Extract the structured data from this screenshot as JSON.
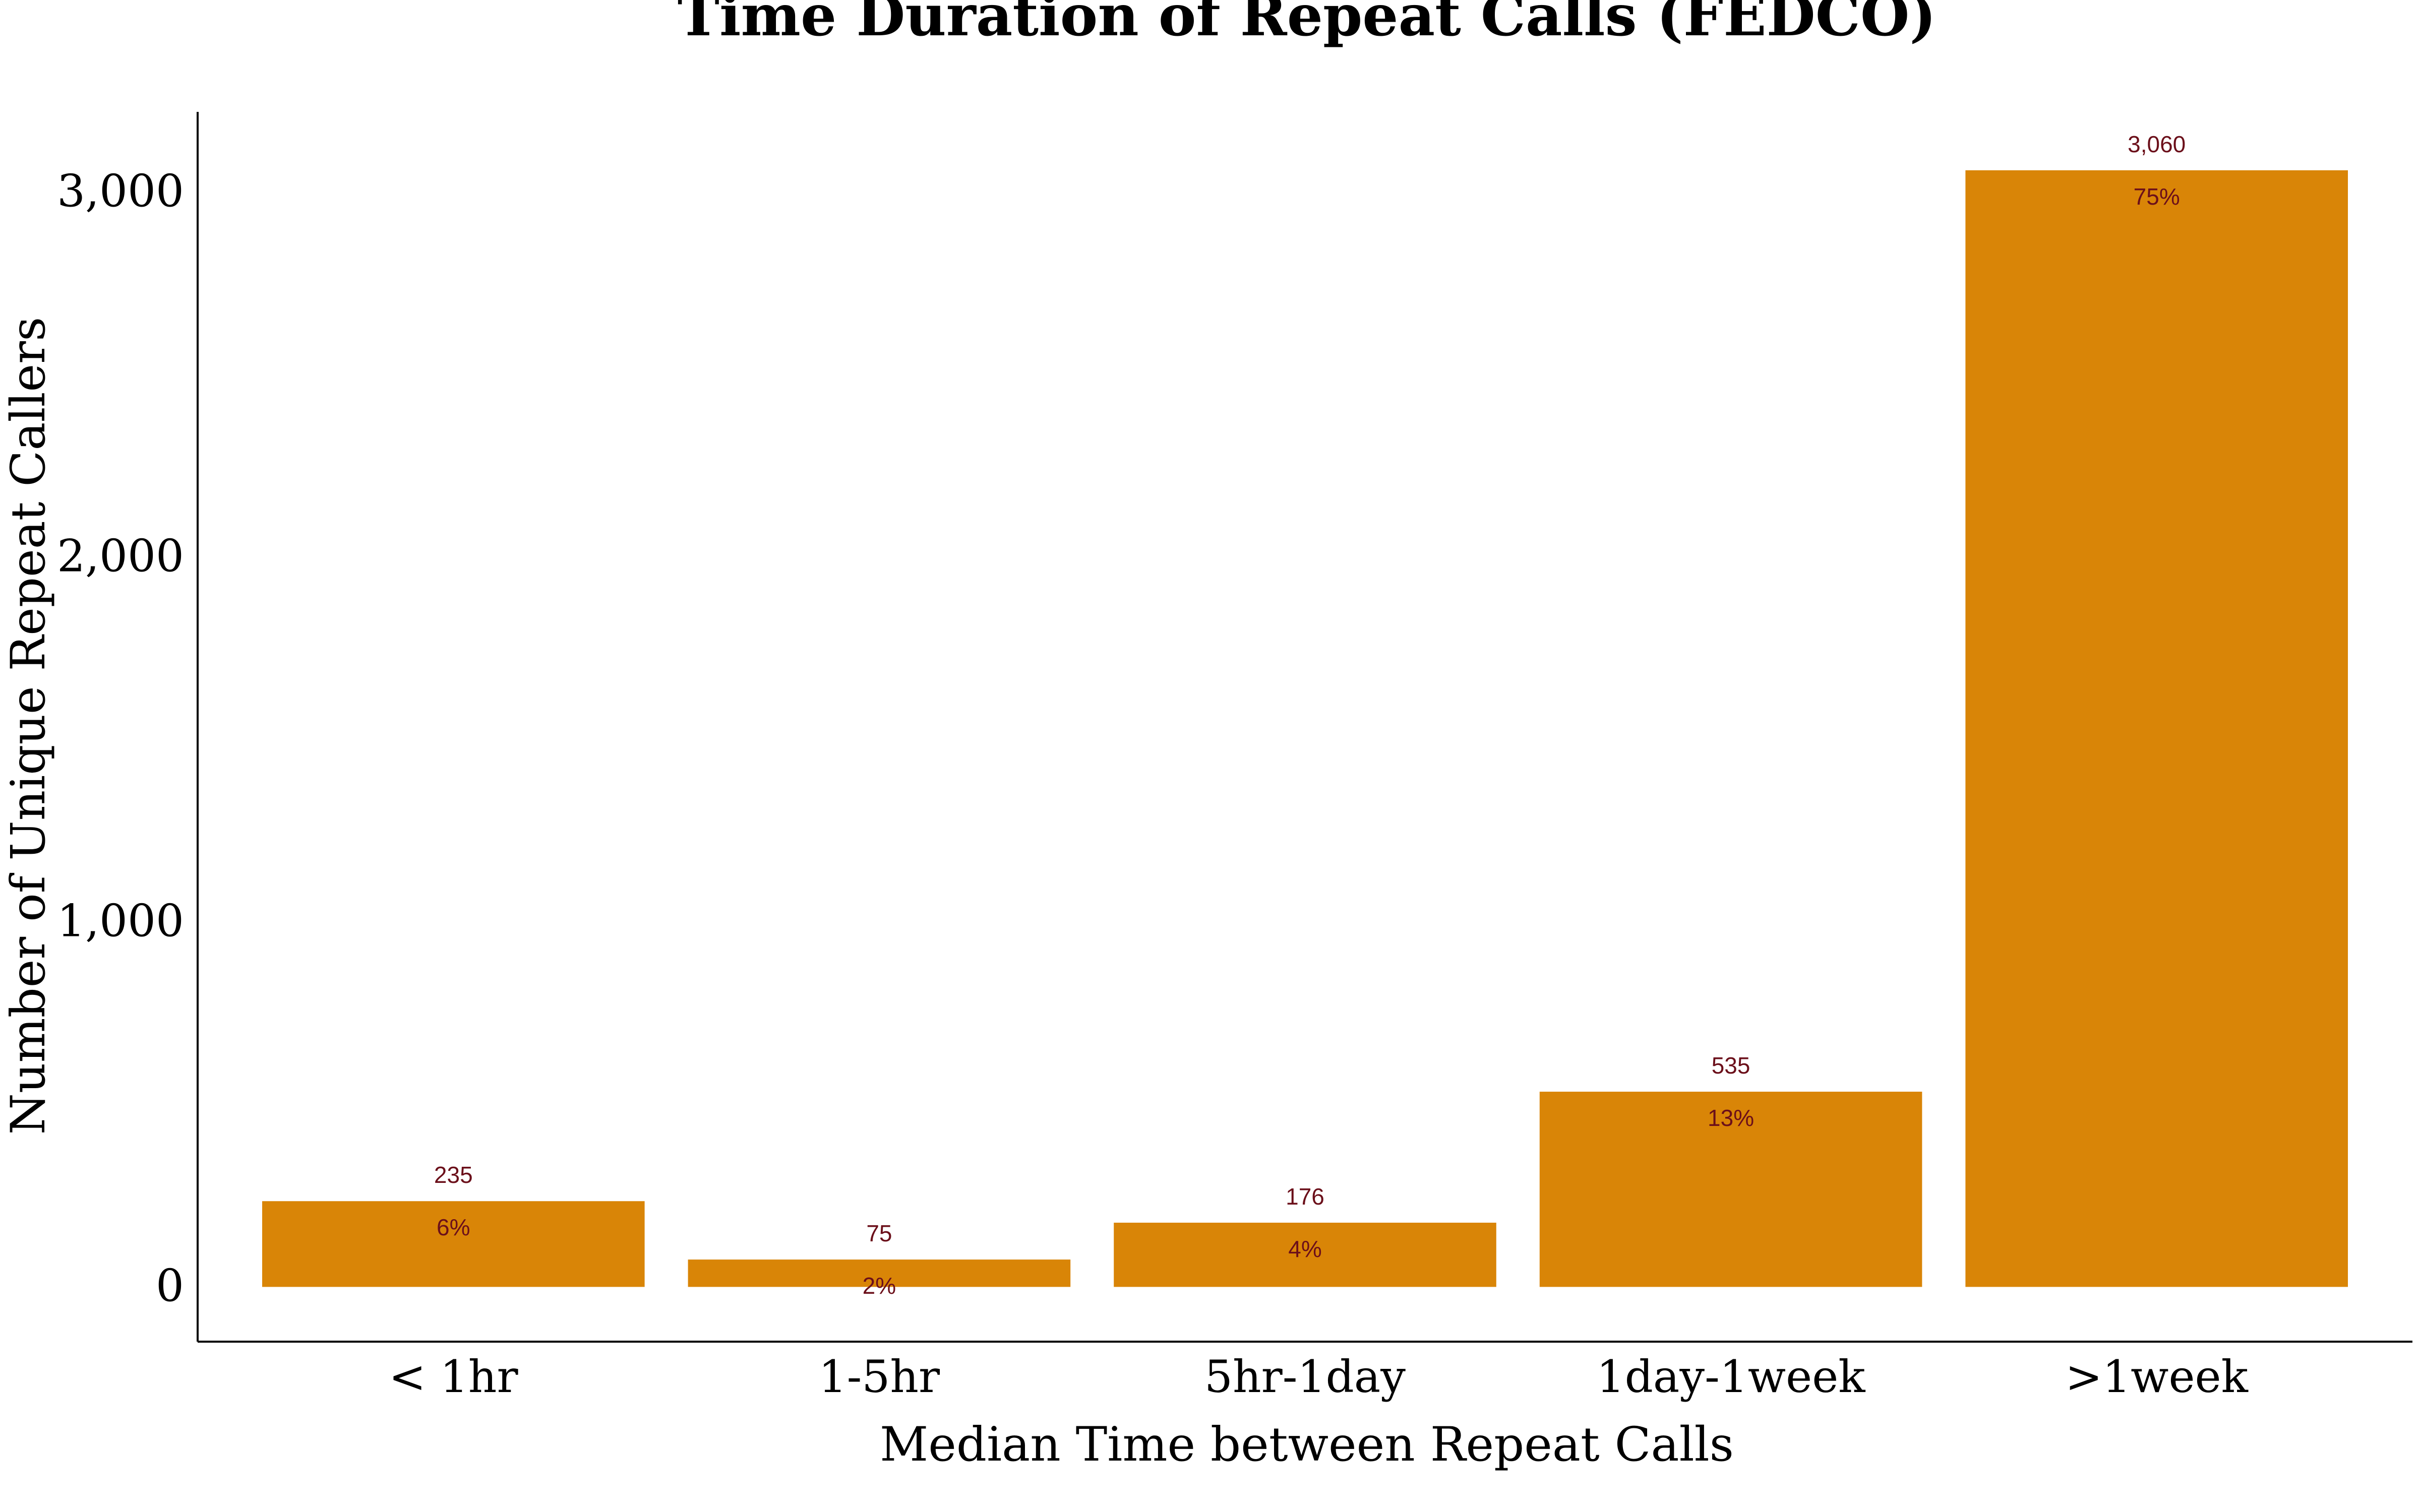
{
  "chart_data": {
    "type": "bar",
    "title": "Time Duration of Repeat Calls (FEDCO)",
    "xlabel": "Median Time between Repeat Calls",
    "ylabel": "Number of Unique Repeat Callers",
    "categories": [
      "< 1hr",
      "1-5hr",
      "5hr-1day",
      "1day-1week",
      ">1week"
    ],
    "values": [
      235,
      75,
      176,
      535,
      3060
    ],
    "value_labels": [
      "235",
      "75",
      "176",
      "535",
      "3,060"
    ],
    "percent_labels": [
      "6%",
      "2%",
      "4%",
      "13%",
      "75%"
    ],
    "y_ticks": [
      0,
      1000,
      2000,
      3000
    ],
    "y_tick_labels": [
      "0",
      "1,000",
      "2,000",
      "3,000"
    ],
    "ylim": [
      -150,
      3220
    ],
    "grid": false,
    "legend": "none"
  },
  "colors": {
    "bar": "#d98507",
    "label": "#6b0f1a",
    "axis": "#000000"
  }
}
